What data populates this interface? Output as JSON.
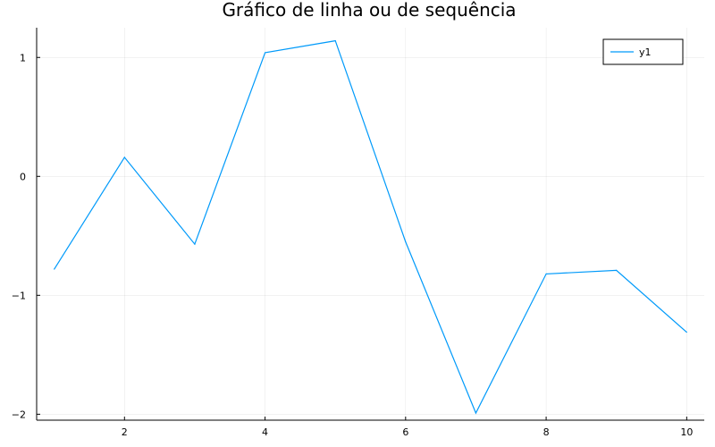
{
  "chart_data": {
    "type": "line",
    "title": "Gráfico de linha ou de sequência",
    "xlabel": "",
    "ylabel": "",
    "xlim": [
      0.75,
      10.25
    ],
    "ylim": [
      -2.05,
      1.25
    ],
    "x_ticks": [
      2,
      4,
      6,
      8,
      10
    ],
    "x_tick_labels": [
      "2",
      "4",
      "6",
      "8",
      "10"
    ],
    "y_ticks": [
      1,
      0,
      -1,
      -2
    ],
    "y_tick_labels": [
      "1",
      "0",
      "−1",
      "−2"
    ],
    "grid": true,
    "legend_position": "top-right",
    "series": [
      {
        "name": "y1",
        "color": "#009AFA",
        "x": [
          1,
          2,
          3,
          4,
          5,
          6,
          7,
          8,
          9,
          10
        ],
        "values": [
          -0.78,
          0.16,
          -0.57,
          1.04,
          1.14,
          -0.55,
          -1.99,
          -0.82,
          -0.79,
          -1.31
        ]
      }
    ]
  }
}
